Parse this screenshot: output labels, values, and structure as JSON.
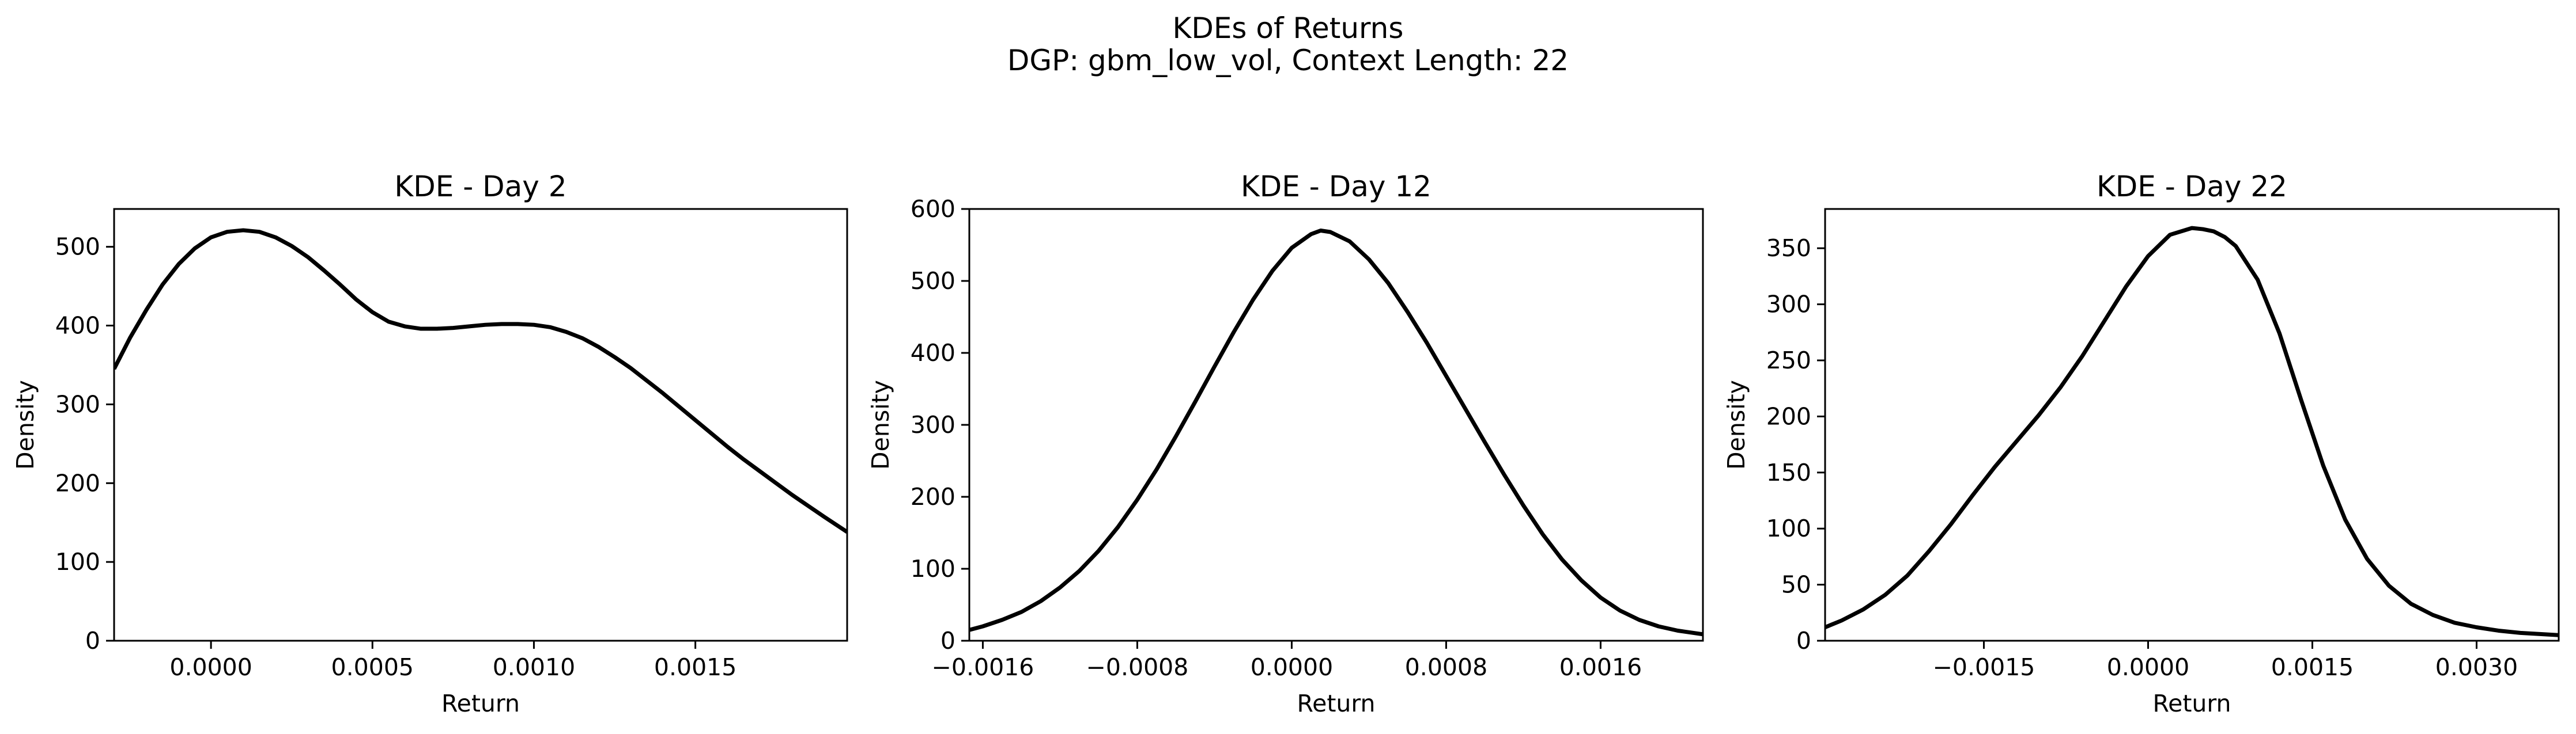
{
  "figure": {
    "title_line1": "KDEs of Returns",
    "title_line2": "DGP: gbm_low_vol, Context Length: 22",
    "line_color": "#000000"
  },
  "chart_data": [
    {
      "type": "line",
      "title": "KDE - Day 2",
      "xlabel": "Return",
      "ylabel": "Density",
      "xlim": [
        -0.0003,
        0.00197
      ],
      "ylim": [
        0,
        548
      ],
      "xticks": [
        0.0,
        0.0005,
        0.001,
        0.0015
      ],
      "xtick_labels": [
        "0.0000",
        "0.0005",
        "0.0010",
        "0.0015"
      ],
      "yticks": [
        0,
        100,
        200,
        300,
        400,
        500
      ],
      "ytick_labels": [
        "0",
        "100",
        "200",
        "300",
        "400",
        "500"
      ],
      "grid": false,
      "series": [
        {
          "x": [
            -0.0003,
            -0.00025,
            -0.0002,
            -0.00015,
            -0.0001,
            -5e-05,
            0.0,
            5e-05,
            0.0001,
            0.00015,
            0.0002,
            0.00025,
            0.0003,
            0.00035,
            0.0004,
            0.00045,
            0.0005,
            0.00055,
            0.0006,
            0.00065,
            0.0007,
            0.00075,
            0.0008,
            0.00085,
            0.0009,
            0.00095,
            0.001,
            0.00105,
            0.0011,
            0.00115,
            0.0012,
            0.00125,
            0.0013,
            0.00135,
            0.0014,
            0.00145,
            0.0015,
            0.00155,
            0.0016,
            0.00165,
            0.0017,
            0.00175,
            0.0018,
            0.00185,
            0.0019,
            0.00197
          ],
          "y": [
            345,
            385,
            420,
            452,
            478,
            498,
            512,
            519,
            521,
            519,
            512,
            501,
            487,
            470,
            452,
            433,
            417,
            405,
            399,
            396,
            396,
            397,
            399,
            401,
            402,
            402,
            401,
            398,
            392,
            384,
            373,
            360,
            346,
            330,
            314,
            297,
            280,
            263,
            246,
            230,
            215,
            200,
            185,
            171,
            157,
            138
          ]
        }
      ]
    },
    {
      "type": "line",
      "title": "KDE - Day 12",
      "xlabel": "Return",
      "ylabel": "Density",
      "xlim": [
        -0.00167,
        0.00213
      ],
      "ylim": [
        0,
        600
      ],
      "xticks": [
        -0.0016,
        -0.0008,
        0.0,
        0.0008,
        0.0016
      ],
      "xtick_labels": [
        "−0.0016",
        "−0.0008",
        "0.0000",
        "0.0008",
        "0.0016"
      ],
      "yticks": [
        0,
        100,
        200,
        300,
        400,
        500,
        600
      ],
      "ytick_labels": [
        "0",
        "100",
        "200",
        "300",
        "400",
        "500",
        "600"
      ],
      "grid": false,
      "series": [
        {
          "x": [
            -0.00167,
            -0.0016,
            -0.0015,
            -0.0014,
            -0.0013,
            -0.0012,
            -0.0011,
            -0.001,
            -0.0009,
            -0.0008,
            -0.0007,
            -0.0006,
            -0.0005,
            -0.0004,
            -0.0003,
            -0.0002,
            -0.0001,
            0.0,
            0.0001,
            0.00015,
            0.0002,
            0.0003,
            0.0004,
            0.0005,
            0.0006,
            0.0007,
            0.0008,
            0.0009,
            0.001,
            0.0011,
            0.0012,
            0.0013,
            0.0014,
            0.0015,
            0.0016,
            0.0017,
            0.0018,
            0.0019,
            0.002,
            0.00213
          ],
          "y": [
            15,
            20,
            29,
            40,
            55,
            74,
            97,
            125,
            158,
            196,
            238,
            284,
            332,
            381,
            429,
            474,
            514,
            546,
            565,
            570,
            568,
            555,
            530,
            497,
            457,
            414,
            368,
            322,
            276,
            231,
            188,
            148,
            113,
            84,
            60,
            42,
            29,
            20,
            14,
            9
          ]
        }
      ]
    },
    {
      "type": "line",
      "title": "KDE - Day 22",
      "xlabel": "Return",
      "ylabel": "Density",
      "xlim": [
        -0.00295,
        0.00375
      ],
      "ylim": [
        0,
        385
      ],
      "xticks": [
        -0.0015,
        0.0,
        0.0015,
        0.003
      ],
      "xtick_labels": [
        "−0.0015",
        "0.0000",
        "0.0015",
        "0.0030"
      ],
      "yticks": [
        0,
        50,
        100,
        150,
        200,
        250,
        300,
        350
      ],
      "ytick_labels": [
        "0",
        "50",
        "100",
        "150",
        "200",
        "250",
        "300",
        "350"
      ],
      "grid": false,
      "series": [
        {
          "x": [
            -0.00295,
            -0.0028,
            -0.0026,
            -0.0024,
            -0.0022,
            -0.002,
            -0.0018,
            -0.0016,
            -0.0014,
            -0.0012,
            -0.001,
            -0.0008,
            -0.0006,
            -0.0004,
            -0.0002,
            0.0,
            0.0002,
            0.0004,
            0.0005,
            0.0006,
            0.0007,
            0.0008,
            0.001,
            0.0012,
            0.0014,
            0.0016,
            0.0018,
            0.002,
            0.0022,
            0.0024,
            0.0026,
            0.0028,
            0.003,
            0.0032,
            0.0034,
            0.00375
          ],
          "y": [
            12,
            18,
            28,
            41,
            58,
            80,
            104,
            130,
            155,
            178,
            201,
            226,
            254,
            285,
            316,
            343,
            362,
            368,
            367,
            365,
            360,
            352,
            322,
            274,
            214,
            156,
            108,
            73,
            49,
            33,
            23,
            16,
            12,
            9,
            7,
            5
          ]
        }
      ]
    }
  ]
}
